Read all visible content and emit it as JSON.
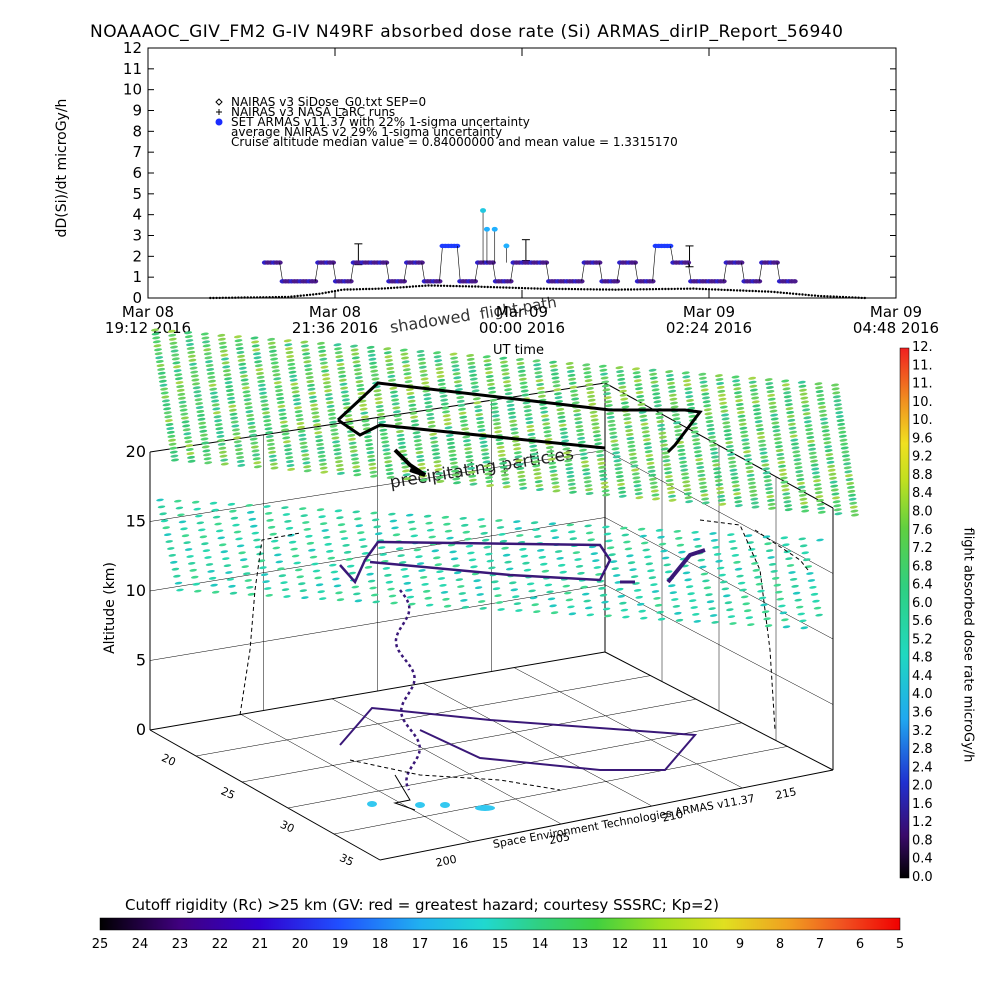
{
  "title": "NOAAAOC_GIV_FM2 G-IV    N49RF  absorbed dose rate (Si) ARMAS_dirIP_Report_56940",
  "chart_data": [
    {
      "type": "scatter",
      "ylabel": "dD(Si)/dt microGy/h",
      "ylim": [
        0,
        12
      ],
      "y_ticks": [
        "0",
        "1",
        "2",
        "3",
        "4",
        "5",
        "6",
        "7",
        "8",
        "9",
        "10",
        "11",
        "12"
      ],
      "x_ticks": [
        {
          "line1": "Mar 08",
          "line2": "19:12 2016"
        },
        {
          "line1": "Mar 08",
          "line2": "21:36 2016"
        },
        {
          "line1": "Mar 09",
          "line2": "00:00 2016"
        },
        {
          "line1": "Mar 09",
          "line2": "02:24 2016"
        },
        {
          "line1": "Mar 09",
          "line2": "04:48 2016"
        }
      ],
      "x_hours": [
        0,
        2.4,
        4.8,
        7.2,
        9.6
      ],
      "xlabel": "UT time",
      "legend": [
        "NAIRAS v3 SiDose_G0.txt SEP=0",
        "NAIRAS v3 NASA LaRC runs",
        "SET ARMAS v11.37 with 22% 1-sigma uncertainty",
        "average NAIRAS v2 29% 1-sigma uncertainty",
        "Cruise altitude median value = 0.84000000 and mean value = 1.3315170"
      ],
      "series": [
        {
          "name": "SET ARMAS v11.37 with 22% 1-sigma uncertainty",
          "x_start": 1.5,
          "x_end": 8.3,
          "pattern": [
            1.7,
            0.8,
            0.8,
            1.7,
            0.8,
            1.7,
            1.7,
            0.8,
            1.7,
            0.8,
            2.5,
            0.8,
            1.7,
            0.8,
            1.7,
            1.7,
            0.8,
            0.8,
            1.7,
            0.8,
            1.7,
            0.8,
            2.5,
            1.7,
            0.8,
            0.8,
            1.7,
            0.8,
            1.7,
            0.8
          ],
          "spikes": [
            {
              "x": 4.3,
              "y": 4.2
            },
            {
              "x": 4.35,
              "y": 3.3
            },
            {
              "x": 4.45,
              "y": 3.3
            },
            {
              "x": 4.6,
              "y": 2.5
            }
          ]
        },
        {
          "name": "NAIRAS v3 SiDose_G0.txt SEP=0",
          "x_start": 0.8,
          "x_end": 9.2,
          "profile": [
            [
              0.8,
              0.0
            ],
            [
              1.8,
              0.05
            ],
            [
              2.2,
              0.2
            ],
            [
              2.5,
              0.4
            ],
            [
              3.0,
              0.45
            ],
            [
              3.6,
              0.6
            ],
            [
              4.2,
              0.55
            ],
            [
              5.0,
              0.45
            ],
            [
              6.0,
              0.4
            ],
            [
              7.0,
              0.45
            ],
            [
              8.0,
              0.3
            ],
            [
              8.6,
              0.1
            ],
            [
              9.2,
              0.0
            ]
          ]
        }
      ]
    },
    {
      "type": "scatter",
      "ylabel": "Altitude (km)",
      "zlim": [
        0,
        20
      ],
      "z_ticks": [
        "0",
        "5",
        "10",
        "15",
        "20"
      ],
      "lat_ticks": [
        "20",
        "25",
        "30",
        "35"
      ],
      "lon_ticks": [
        "200",
        "205",
        "210",
        "215"
      ],
      "annotations": [
        "shadowed flight path",
        "precipitating particles",
        "Space Environment Technologies ARMAS v11.37"
      ],
      "colorbar_label": "flight absorbed dose rate microGy/h",
      "colorbar_ticks": [
        "0.0",
        "0.4",
        "0.8",
        "1.2",
        "1.6",
        "2.0",
        "2.4",
        "2.8",
        "3.2",
        "3.6",
        "4.0",
        "4.4",
        "4.8",
        "5.2",
        "5.6",
        "6.0",
        "6.4",
        "6.8",
        "7.2",
        "7.6",
        "8.0",
        "8.4",
        "8.8",
        "9.2",
        "9.6",
        "10.",
        "10.",
        "11.",
        "11.",
        "12."
      ]
    },
    {
      "type": "heatmap",
      "label": "Cutoff rigidity (Rc) >25 km (GV: red = greatest hazard; courtesy SSSRC; Kp=2)",
      "ticks": [
        "25",
        "24",
        "23",
        "22",
        "21",
        "20",
        "19",
        "18",
        "17",
        "16",
        "15",
        "14",
        "13",
        "12",
        "11",
        "10",
        "9",
        "8",
        "7",
        "6",
        "5"
      ]
    }
  ],
  "labels": {
    "shadow": "shadowed",
    "flight": "flight path",
    "precip": "precipitating particles",
    "credit": "Space Environment Technologies ARMAS v11.37"
  },
  "colors": {
    "armas": "#3030e0",
    "armas_fill": "#5a1a8a",
    "nairas": "#000000",
    "grid": "#000000"
  }
}
